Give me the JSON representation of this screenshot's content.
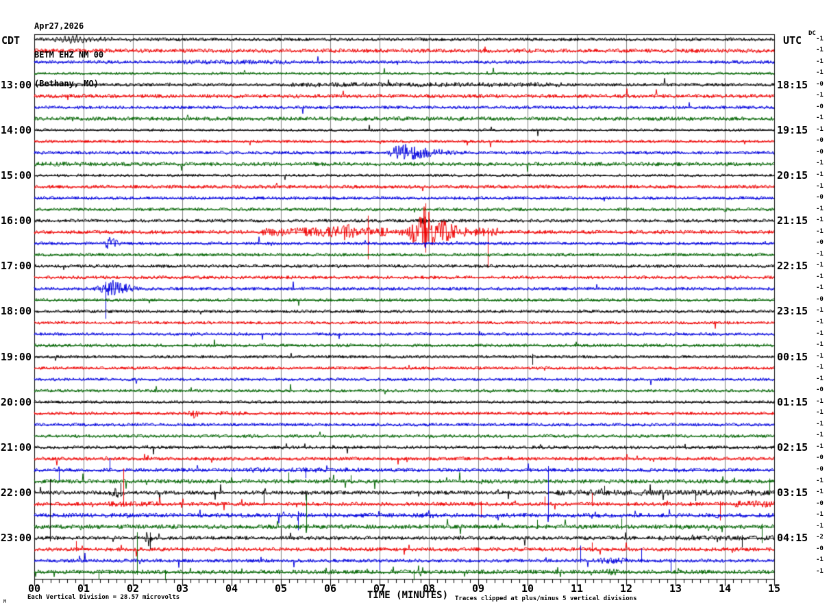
{
  "header": {
    "title_line1": "Apr27,2026",
    "title_line2": "BETM EHZ NM 00",
    "title_line3": "(Bethany, MO)",
    "left_axis_label": "CDT",
    "right_axis_label": "UTC",
    "dc_label": "DC"
  },
  "footer": {
    "axis_title": "TIME (MINUTES)",
    "division_note": "Each Vertical Division =   28.57 microvolts",
    "clip_note": "Traces clipped at plus/minus 5 vertical divisions",
    "watermark": "M"
  },
  "colors": {
    "black": "#000000",
    "red": "#ee0000",
    "blue": "#0000dd",
    "green": "#006400",
    "grid": "#808080",
    "background": "#ffffff"
  },
  "chart_data": {
    "type": "line",
    "subtype": "helicorder-seismogram",
    "date": "Apr27,2026",
    "station": "BETM EHZ NM 00",
    "location": "(Bethany, MO)",
    "x_axis": {
      "label": "TIME (MINUTES)",
      "range_minutes": [
        0,
        15
      ],
      "ticks": [
        "00",
        "01",
        "02",
        "03",
        "04",
        "05",
        "06",
        "07",
        "08",
        "09",
        "10",
        "11",
        "12",
        "13",
        "14",
        "15"
      ],
      "minor_tick_seconds": 10
    },
    "left_axis_timezone": "CDT",
    "right_axis_timezone": "UTC",
    "rows": [
      {
        "color": "black",
        "dc": "-1",
        "amp": 2.6,
        "spiky": false,
        "left_label": null,
        "right_label": null
      },
      {
        "color": "red",
        "dc": "-1",
        "amp": 3.0,
        "spiky": false,
        "left_label": null,
        "right_label": null
      },
      {
        "color": "blue",
        "dc": "-1",
        "amp": 2.4,
        "spiky": false,
        "left_label": null,
        "right_label": null
      },
      {
        "color": "green",
        "dc": "-1",
        "amp": 2.0,
        "spiky": false,
        "left_label": null,
        "right_label": null
      },
      {
        "color": "black",
        "dc": "-0",
        "amp": 2.4,
        "spiky": false,
        "left_label": "13:00",
        "right_label": "18:15"
      },
      {
        "color": "red",
        "dc": "-1",
        "amp": 2.8,
        "spiky": false,
        "left_label": null,
        "right_label": null
      },
      {
        "color": "blue",
        "dc": "-0",
        "amp": 2.4,
        "spiky": false,
        "left_label": null,
        "right_label": null
      },
      {
        "color": "green",
        "dc": "-1",
        "amp": 2.8,
        "spiky": false,
        "left_label": null,
        "right_label": null
      },
      {
        "color": "black",
        "dc": "-1",
        "amp": 2.0,
        "spiky": false,
        "left_label": "14:00",
        "right_label": "19:15"
      },
      {
        "color": "red",
        "dc": "-0",
        "amp": 2.2,
        "spiky": false,
        "left_label": null,
        "right_label": null
      },
      {
        "color": "blue",
        "dc": "-0",
        "amp": 2.4,
        "spiky": false,
        "left_label": null,
        "right_label": null
      },
      {
        "color": "green",
        "dc": "-1",
        "amp": 2.8,
        "spiky": false,
        "left_label": null,
        "right_label": null
      },
      {
        "color": "black",
        "dc": "-1",
        "amp": 2.0,
        "spiky": false,
        "left_label": "15:00",
        "right_label": "20:15"
      },
      {
        "color": "red",
        "dc": "-1",
        "amp": 2.6,
        "spiky": false,
        "left_label": null,
        "right_label": null
      },
      {
        "color": "blue",
        "dc": "-0",
        "amp": 2.4,
        "spiky": false,
        "left_label": null,
        "right_label": null
      },
      {
        "color": "green",
        "dc": "-1",
        "amp": 2.4,
        "spiky": false,
        "left_label": null,
        "right_label": null
      },
      {
        "color": "black",
        "dc": "-1",
        "amp": 2.4,
        "spiky": false,
        "left_label": "16:00",
        "right_label": "21:15"
      },
      {
        "color": "red",
        "dc": "-1",
        "amp": 2.8,
        "spiky": false,
        "left_label": null,
        "right_label": null
      },
      {
        "color": "blue",
        "dc": "-0",
        "amp": 2.4,
        "spiky": false,
        "left_label": null,
        "right_label": null
      },
      {
        "color": "green",
        "dc": "-1",
        "amp": 2.4,
        "spiky": false,
        "left_label": null,
        "right_label": null
      },
      {
        "color": "black",
        "dc": "-1",
        "amp": 2.4,
        "spiky": false,
        "left_label": "17:00",
        "right_label": "22:15"
      },
      {
        "color": "red",
        "dc": "-1",
        "amp": 2.4,
        "spiky": false,
        "left_label": null,
        "right_label": null
      },
      {
        "color": "blue",
        "dc": "-1",
        "amp": 2.4,
        "spiky": false,
        "left_label": null,
        "right_label": null
      },
      {
        "color": "green",
        "dc": "-0",
        "amp": 2.4,
        "spiky": false,
        "left_label": null,
        "right_label": null
      },
      {
        "color": "black",
        "dc": "-1",
        "amp": 2.4,
        "spiky": false,
        "left_label": "18:00",
        "right_label": "23:15"
      },
      {
        "color": "red",
        "dc": "-1",
        "amp": 2.2,
        "spiky": false,
        "left_label": null,
        "right_label": null
      },
      {
        "color": "blue",
        "dc": "-1",
        "amp": 2.2,
        "spiky": false,
        "left_label": null,
        "right_label": null
      },
      {
        "color": "green",
        "dc": "-1",
        "amp": 2.4,
        "spiky": false,
        "left_label": null,
        "right_label": null
      },
      {
        "color": "black",
        "dc": "-1",
        "amp": 2.2,
        "spiky": false,
        "left_label": "19:00",
        "right_label": "00:15"
      },
      {
        "color": "red",
        "dc": "-1",
        "amp": 2.2,
        "spiky": false,
        "left_label": null,
        "right_label": null
      },
      {
        "color": "blue",
        "dc": "-1",
        "amp": 2.2,
        "spiky": false,
        "left_label": null,
        "right_label": null
      },
      {
        "color": "green",
        "dc": "-0",
        "amp": 2.2,
        "spiky": false,
        "left_label": null,
        "right_label": null
      },
      {
        "color": "black",
        "dc": "-1",
        "amp": 2.2,
        "spiky": false,
        "left_label": "20:00",
        "right_label": "01:15"
      },
      {
        "color": "red",
        "dc": "-1",
        "amp": 2.4,
        "spiky": false,
        "left_label": null,
        "right_label": null
      },
      {
        "color": "blue",
        "dc": "-1",
        "amp": 2.4,
        "spiky": false,
        "left_label": null,
        "right_label": null
      },
      {
        "color": "green",
        "dc": "-1",
        "amp": 2.4,
        "spiky": false,
        "left_label": null,
        "right_label": null
      },
      {
        "color": "black",
        "dc": "-1",
        "amp": 2.4,
        "spiky": true,
        "left_label": "21:00",
        "right_label": "02:15"
      },
      {
        "color": "red",
        "dc": "-0",
        "amp": 2.6,
        "spiky": true,
        "left_label": null,
        "right_label": null
      },
      {
        "color": "blue",
        "dc": "-0",
        "amp": 2.8,
        "spiky": true,
        "left_label": null,
        "right_label": null
      },
      {
        "color": "green",
        "dc": "-1",
        "amp": 3.0,
        "spiky": true,
        "left_label": null,
        "right_label": null
      },
      {
        "color": "black",
        "dc": "-1",
        "amp": 2.8,
        "spiky": true,
        "left_label": "22:00",
        "right_label": "03:15"
      },
      {
        "color": "red",
        "dc": "-0",
        "amp": 2.8,
        "spiky": true,
        "left_label": null,
        "right_label": null
      },
      {
        "color": "blue",
        "dc": "-1",
        "amp": 3.0,
        "spiky": true,
        "left_label": null,
        "right_label": null
      },
      {
        "color": "green",
        "dc": "-1",
        "amp": 3.2,
        "spiky": true,
        "left_label": null,
        "right_label": null
      },
      {
        "color": "black",
        "dc": "-2",
        "amp": 2.8,
        "spiky": true,
        "left_label": "23:00",
        "right_label": "04:15"
      },
      {
        "color": "red",
        "dc": "-0",
        "amp": 2.8,
        "spiky": true,
        "left_label": null,
        "right_label": null
      },
      {
        "color": "blue",
        "dc": "-1",
        "amp": 2.6,
        "spiky": true,
        "left_label": null,
        "right_label": null
      },
      {
        "color": "green",
        "dc": "-1",
        "amp": 3.2,
        "spiky": true,
        "left_label": null,
        "right_label": null
      }
    ],
    "events": [
      {
        "row": 0,
        "type": "wave",
        "t0": 0,
        "t1": 2.8,
        "amp": 4.5,
        "period": 0.08,
        "peak": 0.8
      },
      {
        "row": 2,
        "type": "band",
        "t0": 2.9,
        "t1": 5.2,
        "amp": 3.2
      },
      {
        "row": 4,
        "type": "band",
        "t0": 5.2,
        "t1": 10.7,
        "amp": 3.4
      },
      {
        "row": 7,
        "type": "band",
        "t0": 6.0,
        "t1": 9.2,
        "amp": 3.2
      },
      {
        "row": 10,
        "type": "burst",
        "t0": 7.05,
        "t1": 9.8,
        "amp": 14,
        "peak": 7.45
      },
      {
        "row": 11,
        "type": "band",
        "t0": 0,
        "t1": 1.15,
        "amp": 3.4
      },
      {
        "row": 15,
        "type": "burst",
        "t0": 13.85,
        "t1": 14.35,
        "amp": 4,
        "peak": 14.0
      },
      {
        "row": 16,
        "type": "burst",
        "t0": 7.7,
        "t1": 8.25,
        "amp": 6,
        "peak": 7.9
      },
      {
        "row": 17,
        "type": "band",
        "t0": 4.6,
        "t1": 9.4,
        "amp": 6.5
      },
      {
        "row": 17,
        "type": "burst",
        "t0": 5.2,
        "t1": 7.2,
        "amp": 13,
        "peak": 6.4
      },
      {
        "row": 17,
        "type": "burst",
        "t0": 7.5,
        "t1": 9.4,
        "amp": 38,
        "peak": 7.9
      },
      {
        "row": 17,
        "type": "spike",
        "t": 6.77,
        "up": 24,
        "down": 40
      },
      {
        "row": 17,
        "type": "spike",
        "t": 7.93,
        "up": 42,
        "down": 30
      },
      {
        "row": 17,
        "type": "spike",
        "t": 9.2,
        "up": 6,
        "down": 52
      },
      {
        "row": 18,
        "type": "burst",
        "t0": 1.3,
        "t1": 2.0,
        "amp": 11,
        "peak": 1.55
      },
      {
        "row": 22,
        "type": "burst",
        "t0": 1.1,
        "t1": 2.9,
        "amp": 13,
        "peak": 1.6
      },
      {
        "row": 22,
        "type": "spike",
        "t": 1.45,
        "up": 10,
        "down": 44
      },
      {
        "row": 28,
        "type": "spike",
        "t": 10.1,
        "up": 4,
        "down": 12
      },
      {
        "row": 29,
        "type": "burst",
        "t0": 10.25,
        "t1": 10.55,
        "amp": 5,
        "peak": 10.35
      },
      {
        "row": 33,
        "type": "burst",
        "t0": 3.05,
        "t1": 3.65,
        "amp": 8,
        "peak": 3.25
      },
      {
        "row": 33,
        "type": "band",
        "t0": 3.65,
        "t1": 4.3,
        "amp": 3.2
      },
      {
        "row": 38,
        "type": "spike",
        "t": 0.5,
        "up": 3,
        "down": 16
      },
      {
        "row": 38,
        "type": "spike",
        "t": 1.53,
        "up": 18,
        "down": 3
      },
      {
        "row": 38,
        "type": "band",
        "t0": 4.3,
        "t1": 6.6,
        "amp": 3.6
      },
      {
        "row": 38,
        "type": "spike",
        "t": 5.5,
        "up": 4,
        "down": 12
      },
      {
        "row": 39,
        "type": "spike",
        "t": 5.15,
        "up": 13,
        "down": 3
      },
      {
        "row": 39,
        "type": "spike",
        "t": 6.42,
        "up": 9,
        "down": 3
      },
      {
        "row": 39,
        "type": "burst",
        "t0": 13.2,
        "t1": 13.5,
        "amp": 5,
        "peak": 13.3
      },
      {
        "row": 39,
        "type": "spike",
        "t": 14.9,
        "up": 4,
        "down": 20
      },
      {
        "row": 40,
        "type": "burst",
        "t0": 1.35,
        "t1": 2.1,
        "amp": 8,
        "peak": 1.7
      },
      {
        "row": 40,
        "type": "spike",
        "t": 1.75,
        "up": 14,
        "down": 6
      },
      {
        "row": 40,
        "type": "spike",
        "t": 4.65,
        "up": 4,
        "down": 18
      },
      {
        "row": 40,
        "type": "band",
        "t0": 10.6,
        "t1": 15,
        "amp": 4.4
      },
      {
        "row": 40,
        "type": "spike",
        "t": 11.55,
        "up": 10,
        "down": 3
      },
      {
        "row": 40,
        "type": "spike",
        "t": 13.4,
        "up": 3,
        "down": 12
      },
      {
        "row": 41,
        "type": "band",
        "t0": 1.5,
        "t1": 2.6,
        "amp": 4
      },
      {
        "row": 41,
        "type": "spike",
        "t": 1.8,
        "up": 52,
        "down": 4
      },
      {
        "row": 41,
        "type": "spike",
        "t": 9.05,
        "up": 4,
        "down": 20
      },
      {
        "row": 41,
        "type": "spike",
        "t": 10.35,
        "up": 11,
        "down": 3
      },
      {
        "row": 41,
        "type": "spike",
        "t": 11.3,
        "up": 16,
        "down": 3
      },
      {
        "row": 41,
        "type": "spike",
        "t": 13.9,
        "up": 4,
        "down": 24
      },
      {
        "row": 41,
        "type": "band",
        "t0": 14.2,
        "t1": 15,
        "amp": 5
      },
      {
        "row": 42,
        "type": "band",
        "t0": 0,
        "t1": 15,
        "amp": 3.2
      },
      {
        "row": 42,
        "type": "burst",
        "t0": 5.2,
        "t1": 5.65,
        "amp": 11,
        "peak": 5.35
      },
      {
        "row": 42,
        "type": "spike",
        "t": 5.35,
        "up": 6,
        "down": 22
      },
      {
        "row": 42,
        "type": "burst",
        "t0": 7.75,
        "t1": 8.45,
        "amp": 8,
        "peak": 8.0
      },
      {
        "row": 42,
        "type": "burst",
        "t0": 9.3,
        "t1": 9.55,
        "amp": 8,
        "peak": 9.4
      },
      {
        "row": 42,
        "type": "spike",
        "t": 10.42,
        "up": 72,
        "down": 6
      },
      {
        "row": 42,
        "type": "burst",
        "t0": 11.25,
        "t1": 11.65,
        "amp": 9,
        "peak": 11.35
      },
      {
        "row": 42,
        "type": "burst",
        "t0": 13.75,
        "t1": 14.15,
        "amp": 7,
        "peak": 13.9
      },
      {
        "row": 43,
        "type": "spike",
        "t": 5.52,
        "up": 46,
        "down": 5
      },
      {
        "row": 43,
        "type": "spike",
        "t": 10.2,
        "up": 10,
        "down": 3
      },
      {
        "row": 43,
        "type": "spike",
        "t": 11.9,
        "up": 12,
        "down": 4
      },
      {
        "row": 43,
        "type": "spike",
        "t": 14.75,
        "up": 4,
        "down": 24
      },
      {
        "row": 44,
        "type": "spike",
        "t": 0.32,
        "up": 86,
        "down": 5
      },
      {
        "row": 44,
        "type": "burst",
        "t0": 2.2,
        "t1": 2.5,
        "amp": 13,
        "peak": 2.32
      },
      {
        "row": 44,
        "type": "spike",
        "t": 2.35,
        "up": 8,
        "down": 16
      },
      {
        "row": 44,
        "type": "spike",
        "t": 5.0,
        "up": 15,
        "down": 3
      },
      {
        "row": 44,
        "type": "band",
        "t0": 12.6,
        "t1": 15,
        "amp": 3.6
      },
      {
        "row": 44,
        "type": "spike",
        "t": 14.35,
        "up": 4,
        "down": 14
      },
      {
        "row": 45,
        "type": "spike",
        "t": 0.85,
        "up": 12,
        "down": 3
      },
      {
        "row": 45,
        "type": "spike",
        "t": 11.3,
        "up": 10,
        "down": 3
      },
      {
        "row": 46,
        "type": "spike",
        "t": 7.0,
        "up": 3,
        "down": 14
      },
      {
        "row": 46,
        "type": "spike",
        "t": 11.07,
        "up": 22,
        "down": 3
      },
      {
        "row": 46,
        "type": "band",
        "t0": 11.3,
        "t1": 12.0,
        "amp": 4.5
      },
      {
        "row": 46,
        "type": "spike",
        "t": 12.3,
        "up": 18,
        "down": 3
      },
      {
        "row": 46,
        "type": "spike",
        "t": 12.9,
        "up": 3,
        "down": 16
      },
      {
        "row": 47,
        "type": "spike",
        "t": 1.3,
        "up": 3,
        "down": 11
      },
      {
        "row": 47,
        "type": "spike",
        "t": 2.08,
        "up": 58,
        "down": 4
      },
      {
        "row": 47,
        "type": "spike",
        "t": 2.65,
        "up": 3,
        "down": 12
      },
      {
        "row": 47,
        "type": "spike",
        "t": 7.7,
        "up": 3,
        "down": 12
      },
      {
        "row": 47,
        "type": "band",
        "t0": 11.5,
        "t1": 11.9,
        "amp": 5
      }
    ]
  }
}
